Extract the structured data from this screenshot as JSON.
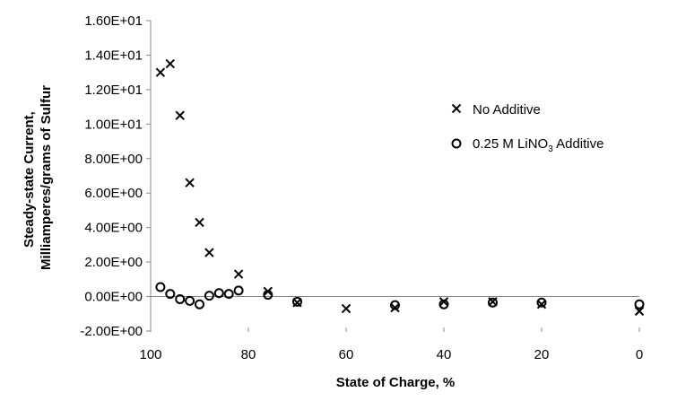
{
  "chart_data": {
    "type": "scatter",
    "xlabel": "State of Charge, %",
    "ylabel_lines": [
      "Steady-state Current,",
      "Milliamperes/grams of Sulfur"
    ],
    "xlim": [
      100,
      0
    ],
    "ylim": [
      -2,
      16
    ],
    "x_ticks": [
      {
        "value": 100,
        "label": "100"
      },
      {
        "value": 80,
        "label": "80"
      },
      {
        "value": 60,
        "label": "60"
      },
      {
        "value": 40,
        "label": "40"
      },
      {
        "value": 20,
        "label": "20"
      },
      {
        "value": 0,
        "label": "0"
      }
    ],
    "y_ticks": [
      {
        "value": -2,
        "label": "-2.00E+00"
      },
      {
        "value": 0,
        "label": "0.00E+00"
      },
      {
        "value": 2,
        "label": "2.00E+00"
      },
      {
        "value": 4,
        "label": "4.00E+00"
      },
      {
        "value": 6,
        "label": "6.00E+00"
      },
      {
        "value": 8,
        "label": "8.00E+00"
      },
      {
        "value": 10,
        "label": "1.00E+01"
      },
      {
        "value": 12,
        "label": "1.20E+01"
      },
      {
        "value": 14,
        "label": "1.40E+01"
      },
      {
        "value": 16,
        "label": "1.60E+01"
      }
    ],
    "grid": false,
    "legend_position": "right",
    "series": [
      {
        "name": "No Additive",
        "marker": "x",
        "points": [
          {
            "x": 98,
            "y": 13.0
          },
          {
            "x": 96,
            "y": 13.5
          },
          {
            "x": 94,
            "y": 10.5
          },
          {
            "x": 92,
            "y": 6.6
          },
          {
            "x": 90,
            "y": 4.3
          },
          {
            "x": 88,
            "y": 2.55
          },
          {
            "x": 82,
            "y": 1.3
          },
          {
            "x": 76,
            "y": 0.3
          },
          {
            "x": 70,
            "y": -0.35
          },
          {
            "x": 60,
            "y": -0.7
          },
          {
            "x": 50,
            "y": -0.65
          },
          {
            "x": 40,
            "y": -0.3
          },
          {
            "x": 30,
            "y": -0.3
          },
          {
            "x": 20,
            "y": -0.45
          },
          {
            "x": 0,
            "y": -0.85
          }
        ]
      },
      {
        "name_parts": [
          "0.25 M LiNO",
          "3",
          " Additive"
        ],
        "marker": "o",
        "points": [
          {
            "x": 98,
            "y": 0.55
          },
          {
            "x": 96,
            "y": 0.15
          },
          {
            "x": 94,
            "y": -0.15
          },
          {
            "x": 92,
            "y": -0.25
          },
          {
            "x": 90,
            "y": -0.45
          },
          {
            "x": 88,
            "y": 0.05
          },
          {
            "x": 86,
            "y": 0.2
          },
          {
            "x": 84,
            "y": 0.15
          },
          {
            "x": 82,
            "y": 0.35
          },
          {
            "x": 76,
            "y": 0.1
          },
          {
            "x": 70,
            "y": -0.3
          },
          {
            "x": 50,
            "y": -0.5
          },
          {
            "x": 40,
            "y": -0.45
          },
          {
            "x": 30,
            "y": -0.35
          },
          {
            "x": 20,
            "y": -0.35
          },
          {
            "x": 0,
            "y": -0.45
          }
        ]
      }
    ]
  }
}
